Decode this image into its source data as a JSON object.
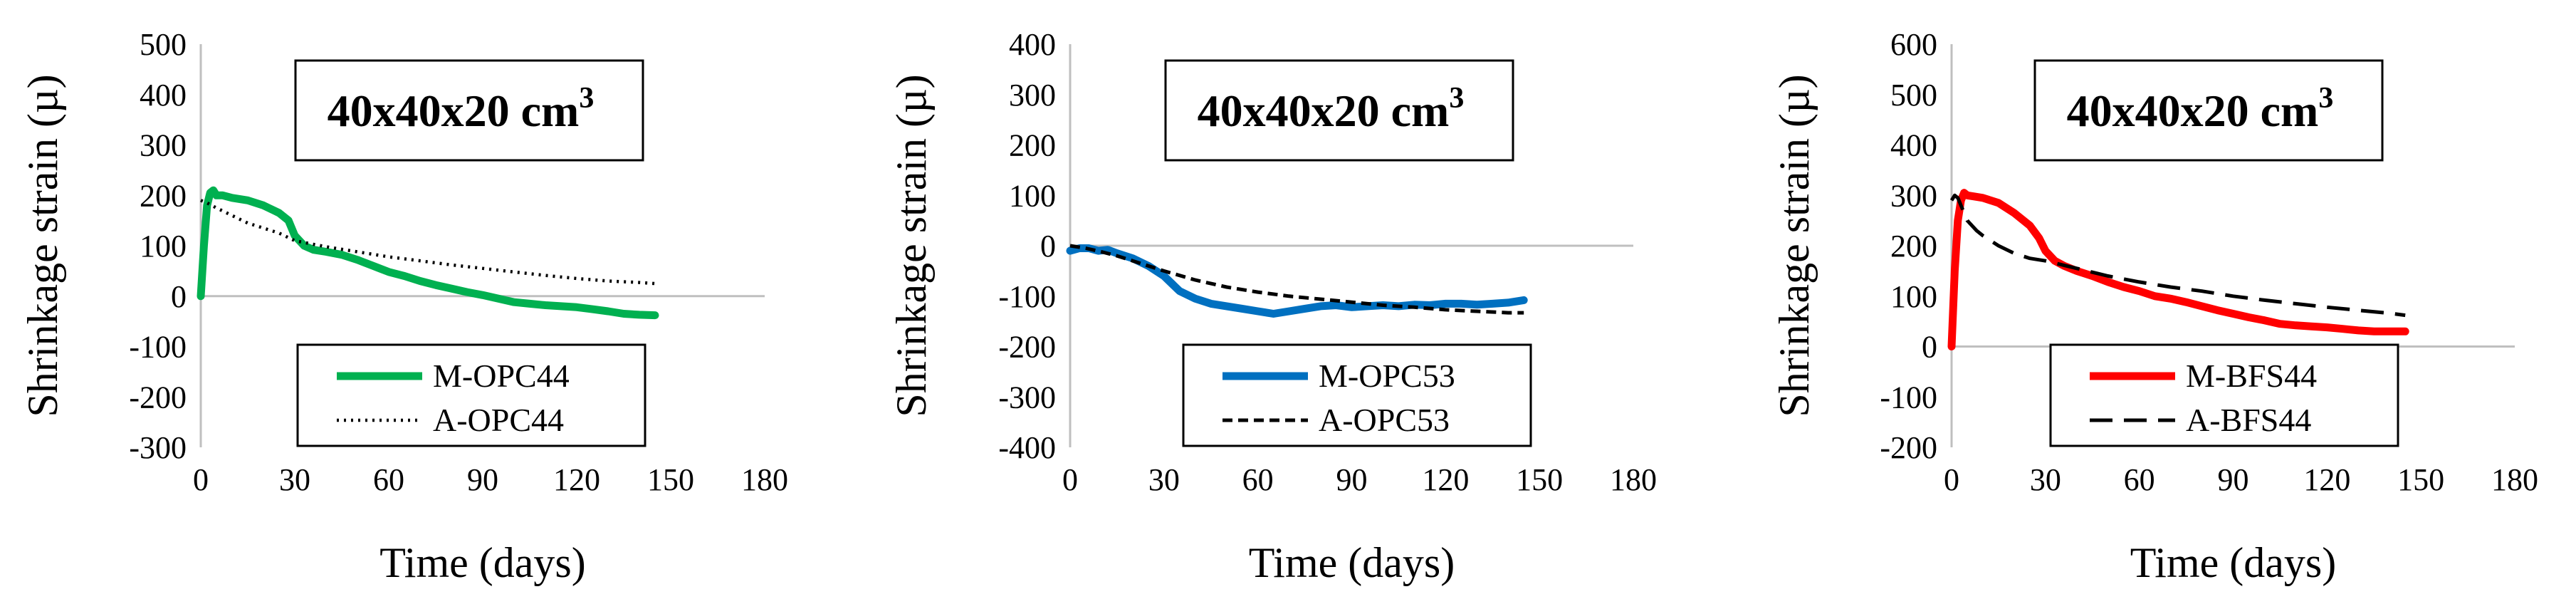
{
  "chart_data": [
    {
      "type": "line",
      "title": "40x40x20 cm³",
      "title_main": "40x40x20 cm",
      "title_sup": "3",
      "xlabel": "Time (days)",
      "ylabel": "Shrinkage strain (µ)",
      "xlim": [
        0,
        180
      ],
      "ylim": [
        -300,
        500
      ],
      "xticks": [
        0,
        30,
        60,
        90,
        120,
        150,
        180
      ],
      "yticks": [
        -300,
        -200,
        -100,
        0,
        100,
        200,
        300,
        400,
        500
      ],
      "xtick_labels": [
        "0",
        "30",
        "60",
        "90",
        "120",
        "150",
        "180"
      ],
      "ytick_labels": [
        "-300",
        "-200",
        "-100",
        "0",
        "100",
        "200",
        "300",
        "400",
        "500"
      ],
      "legend_position": "bottom-center",
      "series": [
        {
          "name": "M-OPC44",
          "style": "solid",
          "color": "#00b050",
          "x": [
            0,
            1,
            2,
            3,
            4,
            5,
            7,
            10,
            15,
            20,
            25,
            28,
            30,
            33,
            36,
            40,
            45,
            50,
            55,
            60,
            65,
            70,
            75,
            80,
            85,
            90,
            95,
            100,
            105,
            110,
            115,
            120,
            125,
            130,
            135,
            140,
            145
          ],
          "y": [
            0,
            100,
            180,
            205,
            210,
            200,
            200,
            195,
            190,
            180,
            165,
            150,
            120,
            100,
            92,
            88,
            82,
            72,
            60,
            48,
            40,
            30,
            22,
            15,
            8,
            2,
            -5,
            -12,
            -15,
            -18,
            -20,
            -22,
            -26,
            -30,
            -35,
            -37,
            -38
          ]
        },
        {
          "name": "A-OPC44",
          "style": "dotted",
          "color": "#000000",
          "x": [
            0,
            2,
            5,
            10,
            15,
            20,
            25,
            30,
            40,
            50,
            60,
            70,
            80,
            90,
            100,
            110,
            120,
            130,
            140,
            145
          ],
          "y": [
            190,
            185,
            175,
            160,
            145,
            135,
            125,
            110,
            98,
            88,
            78,
            70,
            62,
            55,
            48,
            41,
            35,
            30,
            27,
            25
          ]
        }
      ]
    },
    {
      "type": "line",
      "title": "40x40x20 cm³",
      "title_main": "40x40x20 cm",
      "title_sup": "3",
      "xlabel": "Time (days)",
      "ylabel": "Shrinkage strain (µ)",
      "xlim": [
        0,
        180
      ],
      "ylim": [
        -400,
        400
      ],
      "xticks": [
        0,
        30,
        60,
        90,
        120,
        150,
        180
      ],
      "yticks": [
        -400,
        -300,
        -200,
        -100,
        0,
        100,
        200,
        300,
        400
      ],
      "xtick_labels": [
        "0",
        "30",
        "60",
        "90",
        "120",
        "150",
        "180"
      ],
      "ytick_labels": [
        "-400",
        "-300",
        "-200",
        "-100",
        "0",
        "100",
        "200",
        "300",
        "400"
      ],
      "legend_position": "bottom-center",
      "series": [
        {
          "name": "M-OPC53",
          "style": "solid",
          "color": "#0070c0",
          "x": [
            0,
            3,
            6,
            9,
            12,
            15,
            20,
            25,
            30,
            35,
            40,
            45,
            50,
            55,
            60,
            65,
            70,
            75,
            80,
            85,
            90,
            95,
            100,
            105,
            110,
            115,
            120,
            125,
            130,
            135,
            140,
            145
          ],
          "y": [
            -10,
            -5,
            -5,
            -10,
            -8,
            -15,
            -25,
            -40,
            -60,
            -90,
            -105,
            -115,
            -120,
            -125,
            -130,
            -135,
            -130,
            -125,
            -120,
            -118,
            -122,
            -120,
            -118,
            -120,
            -117,
            -118,
            -115,
            -115,
            -117,
            -115,
            -113,
            -108
          ]
        },
        {
          "name": "A-OPC53",
          "style": "dashed",
          "color": "#000000",
          "x": [
            0,
            5,
            10,
            15,
            20,
            30,
            40,
            50,
            60,
            70,
            80,
            90,
            100,
            110,
            120,
            130,
            140,
            145
          ],
          "y": [
            0,
            -5,
            -12,
            -20,
            -30,
            -50,
            -68,
            -82,
            -92,
            -100,
            -106,
            -112,
            -118,
            -122,
            -127,
            -130,
            -133,
            -133
          ]
        }
      ]
    },
    {
      "type": "line",
      "title": "40x40x20 cm³",
      "title_main": "40x40x20 cm",
      "title_sup": "3",
      "xlabel": "Time (days)",
      "ylabel": "Shrinkage strain (µ)",
      "xlim": [
        0,
        180
      ],
      "ylim": [
        -200,
        600
      ],
      "xticks": [
        0,
        30,
        60,
        90,
        120,
        150,
        180
      ],
      "yticks": [
        -200,
        -100,
        0,
        100,
        200,
        300,
        400,
        500,
        600
      ],
      "xtick_labels": [
        "0",
        "30",
        "60",
        "90",
        "120",
        "150",
        "180"
      ],
      "ytick_labels": [
        "-200",
        "-100",
        "0",
        "100",
        "200",
        "300",
        "400",
        "500",
        "600"
      ],
      "legend_position": "bottom-center",
      "series": [
        {
          "name": "M-BFS44",
          "style": "solid",
          "color": "#ff0000",
          "x": [
            0,
            1,
            2,
            3,
            4,
            5,
            7,
            10,
            15,
            20,
            25,
            28,
            30,
            33,
            36,
            40,
            45,
            50,
            55,
            60,
            65,
            70,
            75,
            80,
            85,
            90,
            95,
            100,
            105,
            110,
            115,
            120,
            125,
            130,
            135,
            140,
            145
          ],
          "y": [
            0,
            150,
            250,
            290,
            305,
            300,
            298,
            295,
            285,
            265,
            240,
            215,
            190,
            170,
            160,
            150,
            140,
            128,
            118,
            110,
            100,
            95,
            88,
            80,
            72,
            65,
            58,
            52,
            45,
            42,
            40,
            38,
            35,
            32,
            30,
            30,
            30
          ]
        },
        {
          "name": "A-BFS44",
          "style": "long-dash",
          "color": "#000000",
          "x": [
            0,
            1,
            2,
            3,
            5,
            8,
            10,
            15,
            20,
            25,
            30,
            40,
            50,
            60,
            70,
            80,
            90,
            100,
            110,
            120,
            130,
            140,
            145
          ],
          "y": [
            290,
            300,
            295,
            280,
            250,
            230,
            220,
            200,
            185,
            175,
            170,
            155,
            140,
            128,
            118,
            110,
            100,
            92,
            85,
            78,
            72,
            66,
            62
          ]
        }
      ]
    }
  ]
}
